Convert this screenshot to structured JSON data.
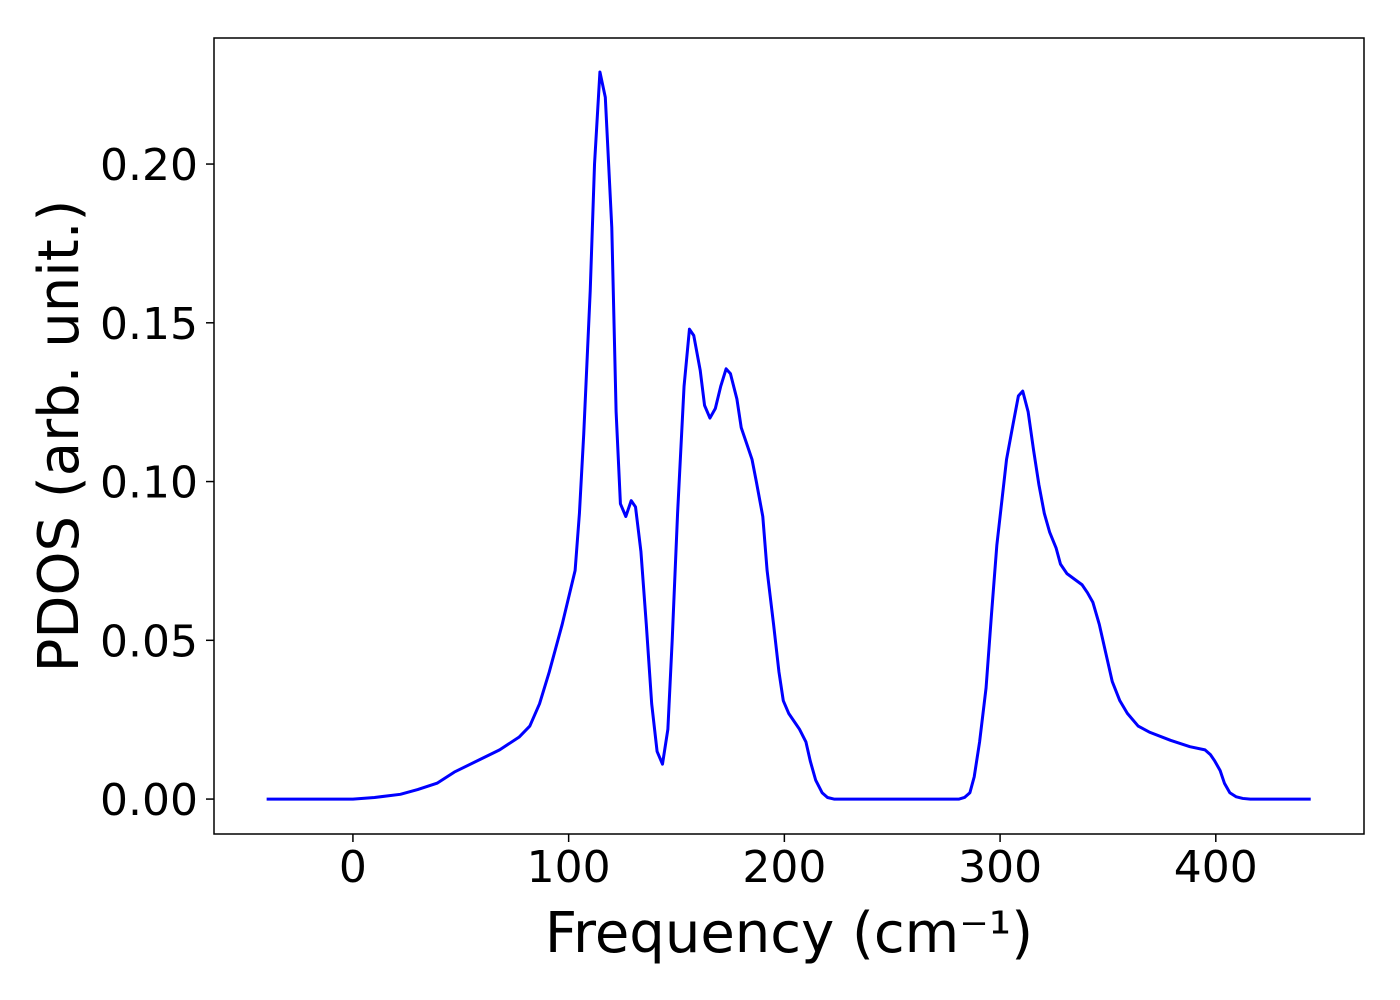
{
  "chart_data": {
    "type": "line",
    "xlabel": "Frequency (cm⁻¹)",
    "ylabel": "PDOS (arb. unit.)",
    "x": [
      -40,
      -20,
      0,
      10,
      22,
      30,
      39,
      47,
      59,
      68,
      77,
      82,
      86.5,
      91,
      97,
      103,
      105,
      107,
      110,
      112,
      114.5,
      117,
      120,
      122,
      124,
      126.5,
      129,
      131,
      133.5,
      136,
      138.5,
      141,
      143.5,
      146,
      148,
      150.5,
      153.5,
      156,
      158,
      161,
      163,
      165.5,
      168,
      170.5,
      173,
      175,
      178,
      180,
      183,
      185,
      187,
      190,
      192,
      195,
      197.5,
      199.5,
      202,
      205,
      207,
      210,
      212,
      214.5,
      217.5,
      220,
      223,
      250,
      281,
      283.5,
      286,
      288,
      290.5,
      293.5,
      296,
      298.5,
      301,
      303,
      306,
      308.5,
      310.5,
      313,
      315.5,
      318,
      320.5,
      323,
      326,
      328,
      331,
      335,
      338,
      340.5,
      343,
      346,
      349,
      352,
      355.5,
      359,
      364,
      369.5,
      379,
      388,
      395,
      397.5,
      399.5,
      402,
      404,
      406.5,
      409.5,
      412.5,
      416,
      444
    ],
    "series": [
      {
        "name": "PDOS",
        "color": "#0000ff",
        "values": [
          0,
          0,
          0,
          0.0005,
          0.0015,
          0.003,
          0.005,
          0.0085,
          0.0125,
          0.0155,
          0.0195,
          0.023,
          0.03,
          0.04,
          0.055,
          0.072,
          0.09,
          0.115,
          0.16,
          0.2,
          0.229,
          0.221,
          0.18,
          0.122,
          0.093,
          0.089,
          0.094,
          0.092,
          0.078,
          0.055,
          0.03,
          0.015,
          0.011,
          0.022,
          0.05,
          0.09,
          0.13,
          0.148,
          0.146,
          0.135,
          0.124,
          0.12,
          0.123,
          0.13,
          0.1355,
          0.134,
          0.126,
          0.117,
          0.111,
          0.107,
          0.1,
          0.089,
          0.072,
          0.055,
          0.04,
          0.031,
          0.027,
          0.024,
          0.022,
          0.018,
          0.012,
          0.006,
          0.002,
          0.0005,
          0,
          0,
          0,
          0.0005,
          0.002,
          0.007,
          0.018,
          0.035,
          0.058,
          0.08,
          0.095,
          0.107,
          0.118,
          0.127,
          0.1285,
          0.122,
          0.11,
          0.099,
          0.09,
          0.084,
          0.079,
          0.074,
          0.071,
          0.069,
          0.0675,
          0.065,
          0.062,
          0.055,
          0.046,
          0.037,
          0.031,
          0.027,
          0.023,
          0.021,
          0.0185,
          0.0165,
          0.0155,
          0.014,
          0.012,
          0.009,
          0.005,
          0.002,
          0.0007,
          0.0002,
          0,
          0
        ]
      }
    ],
    "xlim": [
      -64.4,
      468.7
    ],
    "ylim": [
      -0.011,
      0.2397
    ],
    "xticks": [
      0,
      100,
      200,
      300,
      400
    ],
    "yticks": [
      {
        "value": 0,
        "label": "0.00"
      },
      {
        "value": 0.05,
        "label": "0.05"
      },
      {
        "value": 0.1,
        "label": "0.10"
      },
      {
        "value": 0.15,
        "label": "0.15"
      },
      {
        "value": 0.2,
        "label": "0.20"
      }
    ],
    "grid": false
  }
}
